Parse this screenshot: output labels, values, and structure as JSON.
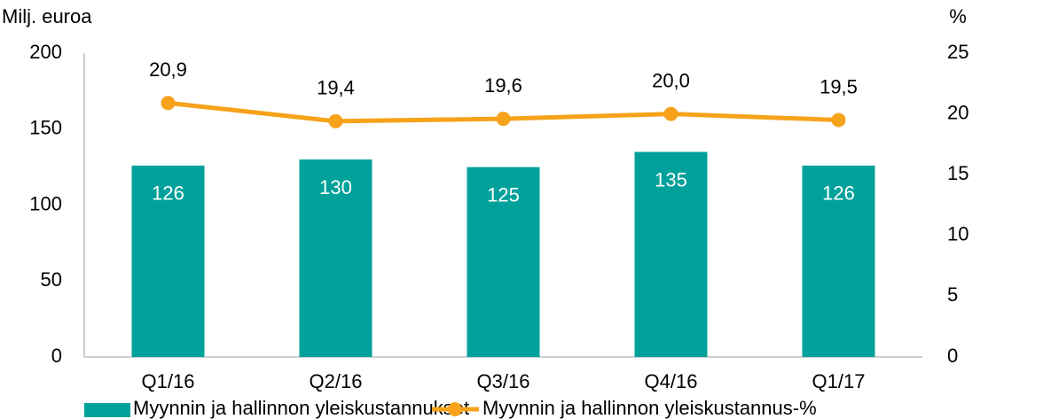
{
  "chart_data": {
    "type": "bar",
    "y_label": "Milj. euroa",
    "y2_label": "%",
    "categories": [
      "Q1/16",
      "Q2/16",
      "Q3/16",
      "Q4/16",
      "Q1/17"
    ],
    "series": [
      {
        "name": "Myynnin ja hallinnon yleiskustannukset",
        "type": "bar",
        "color": "#00a19a",
        "values": [
          126,
          130,
          125,
          135,
          126
        ]
      },
      {
        "name": "Myynnin ja hallinnon yleiskustannus-%",
        "type": "line",
        "axis": "y2",
        "color": "#f7a21b",
        "values": [
          20.9,
          19.4,
          19.6,
          20.0,
          19.5
        ],
        "value_labels": [
          "20,9",
          "19,4",
          "19,6",
          "20,0",
          "19,5"
        ]
      }
    ],
    "ylim": [
      0,
      200
    ],
    "yticks": [
      0,
      50,
      100,
      150,
      200
    ],
    "y2lim": [
      0,
      25
    ],
    "y2ticks": [
      0,
      5,
      10,
      15,
      20,
      25
    ]
  }
}
